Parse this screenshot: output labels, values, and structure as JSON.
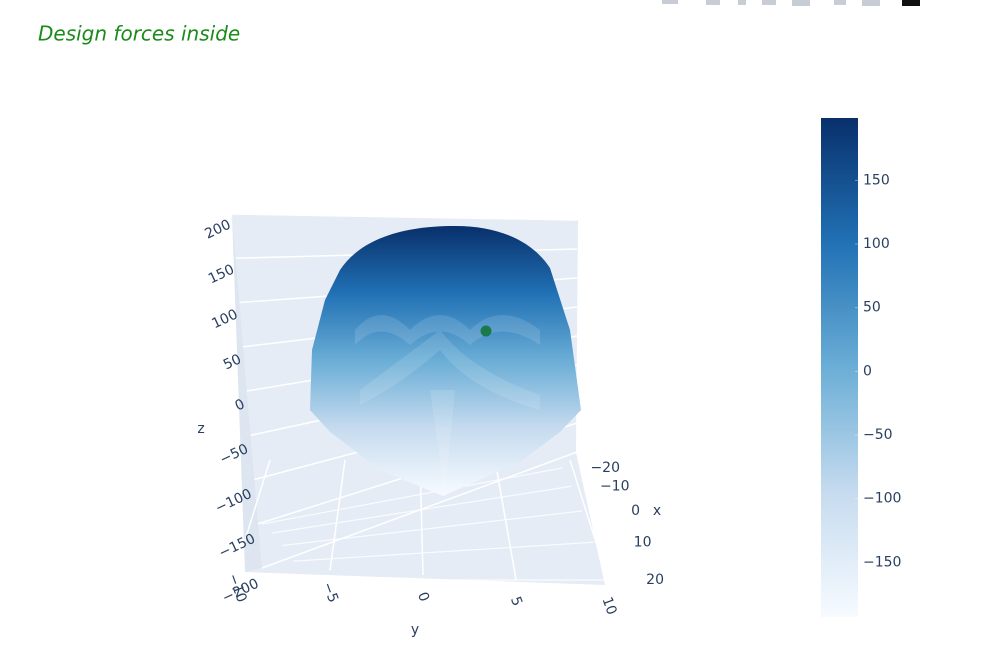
{
  "chart_data": {
    "type": "surface3d",
    "title": "Design forces inside",
    "colorscale": [
      "#f7fbff",
      "#c6dbef",
      "#6baed6",
      "#2171b5",
      "#08306b"
    ],
    "clim": [
      -193,
      199
    ],
    "colorbar_ticks": [
      {
        "value": -150,
        "label": "−150"
      },
      {
        "value": -100,
        "label": "−100"
      },
      {
        "value": -50,
        "label": "−50"
      },
      0,
      50,
      100,
      150
    ],
    "scene": {
      "xaxis": {
        "title": "x",
        "ticks": [
          {
            "value": -20,
            "label": "−20"
          },
          {
            "value": -10,
            "label": "−10"
          },
          0,
          10,
          20
        ]
      },
      "yaxis": {
        "title": "y",
        "ticks": [
          {
            "value": -10,
            "label": "−10"
          },
          {
            "value": -5,
            "label": "−5"
          },
          0,
          5,
          10
        ]
      },
      "zaxis": {
        "title": "z",
        "ticks": [
          {
            "value": -200,
            "label": "−200"
          },
          {
            "value": -150,
            "label": "−150"
          },
          {
            "value": -100,
            "label": "−100"
          },
          {
            "value": -50,
            "label": "−50"
          },
          0,
          50,
          100,
          150,
          200
        ]
      }
    },
    "marker_color": "#1a7a4c"
  }
}
